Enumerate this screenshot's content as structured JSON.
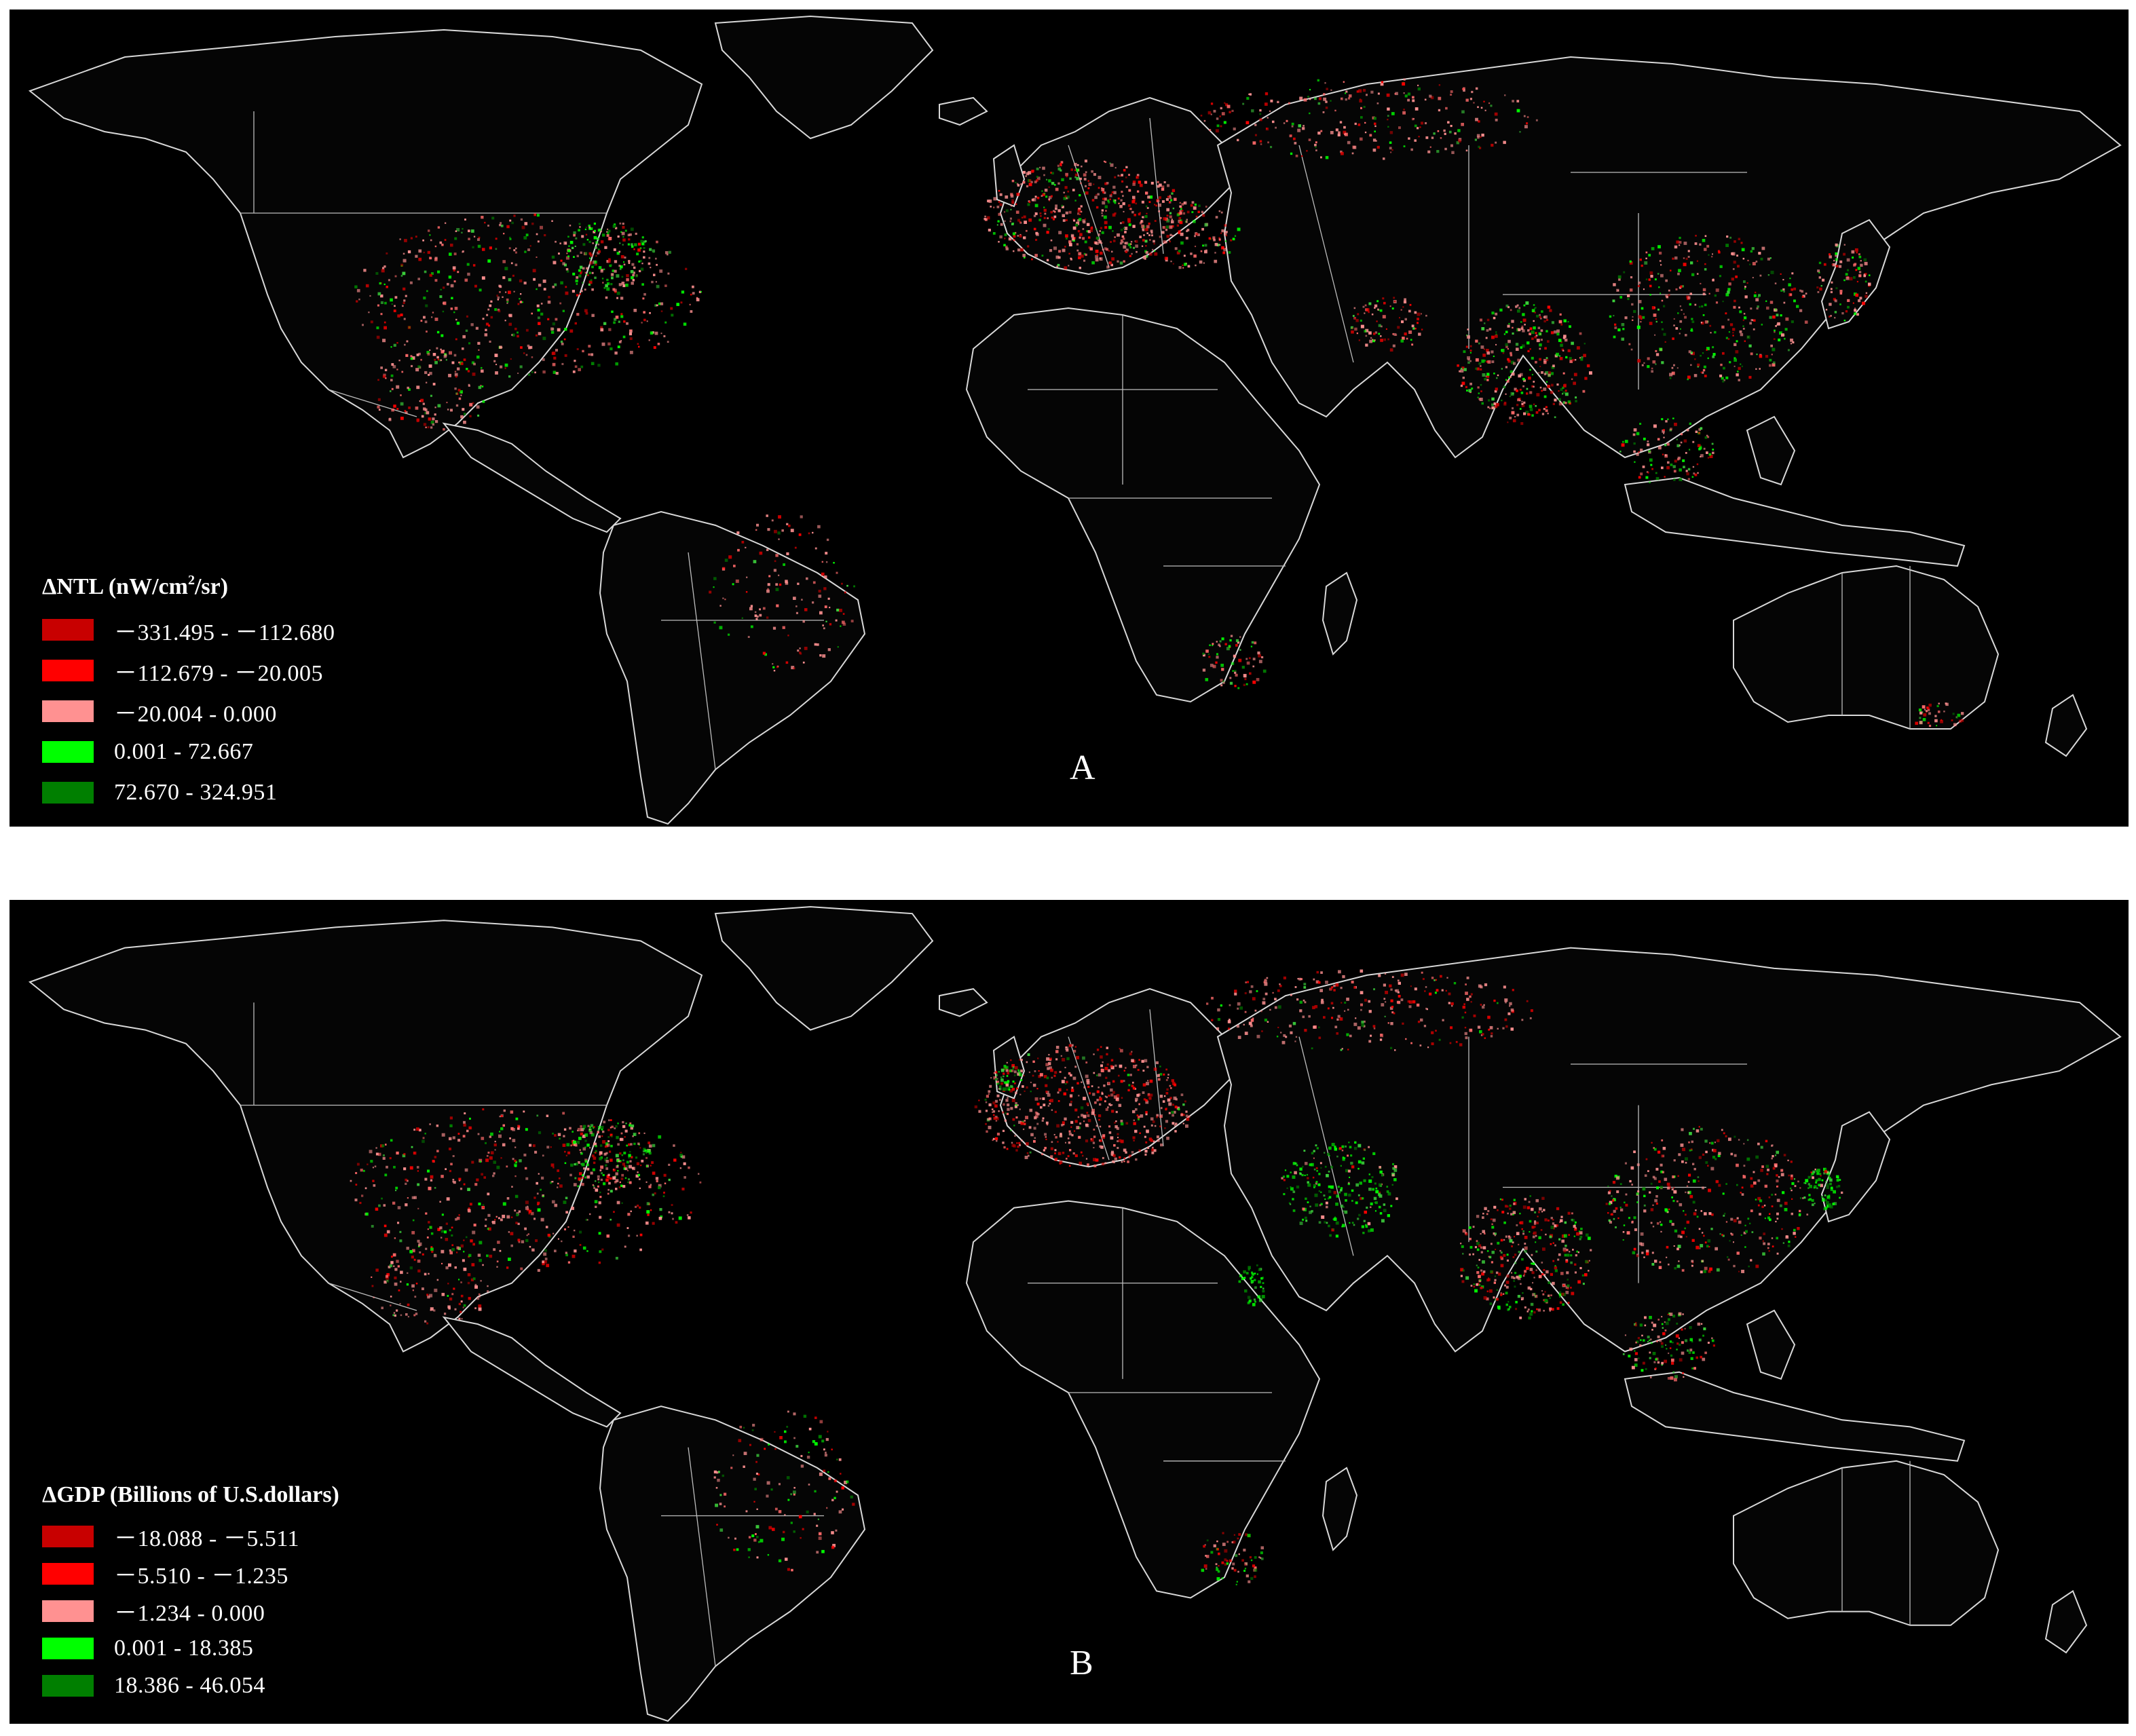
{
  "panels": [
    {
      "letter": "A",
      "legend": {
        "title_prefix": "ΔNTL (nW/cm",
        "title_sup": "2",
        "title_suffix": "/sr)",
        "items": [
          {
            "label": "－331.495 - －112.680",
            "color": "#c80000"
          },
          {
            "label": "－112.679 - －20.005",
            "color": "#ff0000"
          },
          {
            "label": "－20.004 - 0.000",
            "color": "#ff9191"
          },
          {
            "label": "0.001 - 72.667",
            "color": "#00ff00"
          },
          {
            "label": "72.670 - 324.951",
            "color": "#007f00"
          }
        ]
      }
    },
    {
      "letter": "B",
      "legend": {
        "title": "ΔGDP (Billions of U.S.dollars)",
        "items": [
          {
            "label": "－18.088 - －5.511",
            "color": "#c80000"
          },
          {
            "label": "－5.510 - －1.235",
            "color": "#ff0000"
          },
          {
            "label": "－1.234 - 0.000",
            "color": "#ff9191"
          },
          {
            "label": "0.001 - 18.385",
            "color": "#00ff00"
          },
          {
            "label": "18.386 - 46.054",
            "color": "#007f00"
          }
        ]
      }
    }
  ]
}
